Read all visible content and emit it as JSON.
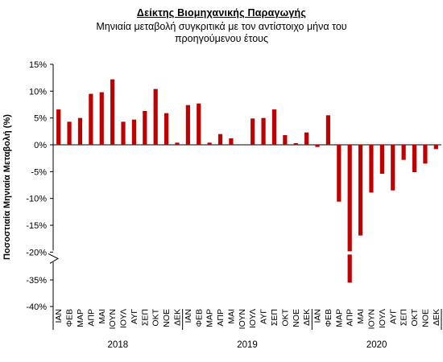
{
  "chart_data": {
    "type": "bar",
    "title": "Δείκτης Βιομηχανικής Παραγωγής",
    "subtitle_line1": "Μηνιαία μεταβολή συγκριτικά με τον αντίστοιχο μήνα του",
    "subtitle_line2": "προηγούμενου έτους",
    "ylabel": "Ποσοστιαία Μηνιαία Μεταβολή (%)",
    "y_ticks": [
      "15%",
      "10%",
      "5%",
      "0%",
      "-5%",
      "-10%",
      "-15%",
      "-20%",
      "-35%",
      "-40%"
    ],
    "axis_break": "between -20% and -35%",
    "years": [
      "2018",
      "2019",
      "2020"
    ],
    "months": [
      "ΙΑΝ",
      "ΦΕΒ",
      "ΜΑΡ",
      "ΑΠΡ",
      "ΜΑΙ",
      "ΙΟΥΝ",
      "ΙΟΥΛ",
      "ΑΥΓ",
      "ΣΕΠ",
      "ΟΚΤ",
      "ΝΟΕ",
      "ΔΕΚ"
    ],
    "categories": [
      "ΙΑΝ 2018",
      "ΦΕΒ 2018",
      "ΜΑΡ 2018",
      "ΑΠΡ 2018",
      "ΜΑΙ 2018",
      "ΙΟΥΝ 2018",
      "ΙΟΥΛ 2018",
      "ΑΥΓ 2018",
      "ΣΕΠ 2018",
      "ΟΚΤ 2018",
      "ΝΟΕ 2018",
      "ΔΕΚ 2018",
      "ΙΑΝ 2019",
      "ΦΕΒ 2019",
      "ΜΑΡ 2019",
      "ΑΠΡ 2019",
      "ΜΑΙ 2019",
      "ΙΟΥΝ 2019",
      "ΙΟΥΛ 2019",
      "ΑΥΓ 2019",
      "ΣΕΠ 2019",
      "ΟΚΤ 2019",
      "ΝΟΕ 2019",
      "ΔΕΚ 2019",
      "ΙΑΝ 2020",
      "ΦΕΒ 2020",
      "ΜΑΡ 2020",
      "ΑΠΡ 2020",
      "ΜΑΙ 2020",
      "ΙΟΥΝ 2020",
      "ΙΟΥΛ 2020",
      "ΑΥΓ 2020",
      "ΣΕΠ 2020",
      "ΟΚΤ 2020",
      "ΝΟΕ 2020",
      "ΔΕΚ 2020"
    ],
    "values": [
      6.6,
      4.3,
      5.0,
      9.5,
      9.8,
      12.2,
      4.3,
      4.7,
      6.3,
      10.4,
      5.9,
      0.4,
      7.4,
      7.7,
      0.4,
      2.0,
      1.2,
      0.0,
      4.9,
      5.0,
      6.6,
      1.8,
      0.3,
      2.3,
      -0.4,
      5.5,
      -10.6,
      -35.5,
      -16.9,
      -8.9,
      -5.4,
      -8.5,
      -2.8,
      -5.1,
      -3.5,
      -0.8
    ],
    "bar_color": "#c00000",
    "grid": false
  }
}
